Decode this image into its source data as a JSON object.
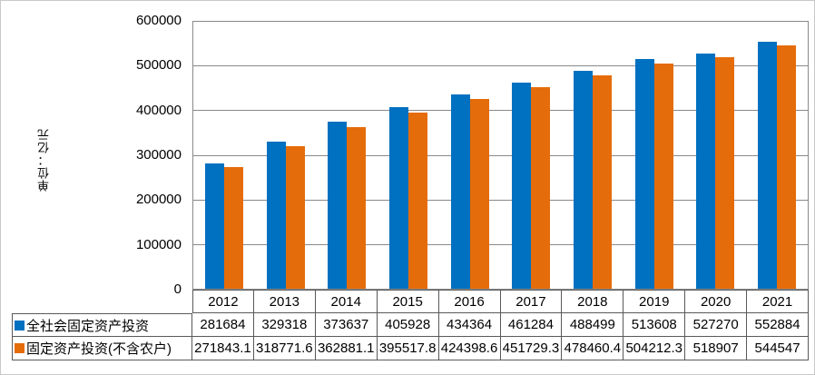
{
  "chart_data": {
    "type": "bar",
    "title": "",
    "y_axis_title": "单位：亿元",
    "categories": [
      "2012",
      "2013",
      "2014",
      "2015",
      "2016",
      "2017",
      "2018",
      "2019",
      "2020",
      "2021"
    ],
    "series": [
      {
        "name": "全社会固定资产投资",
        "color": "#0070C0",
        "values": [
          281684,
          329318,
          373637,
          405928,
          434364,
          461284,
          488499,
          513608,
          527270,
          552884
        ]
      },
      {
        "name": "固定资产投资(不含农户)",
        "color": "#E56C0A",
        "values": [
          271843.1,
          318771.6,
          362881.1,
          395517.8,
          424398.6,
          451729.3,
          478460.4,
          504212.3,
          518907,
          544547
        ]
      }
    ],
    "ylim": [
      0,
      600000
    ],
    "yticks": [
      0,
      100000,
      200000,
      300000,
      400000,
      500000,
      600000
    ],
    "grid": true,
    "legend_position": "table-left",
    "colors": {
      "gridline": "#898989",
      "table_border": "#595959",
      "frame_border": "#C9C9C9",
      "text": "#000000"
    }
  }
}
